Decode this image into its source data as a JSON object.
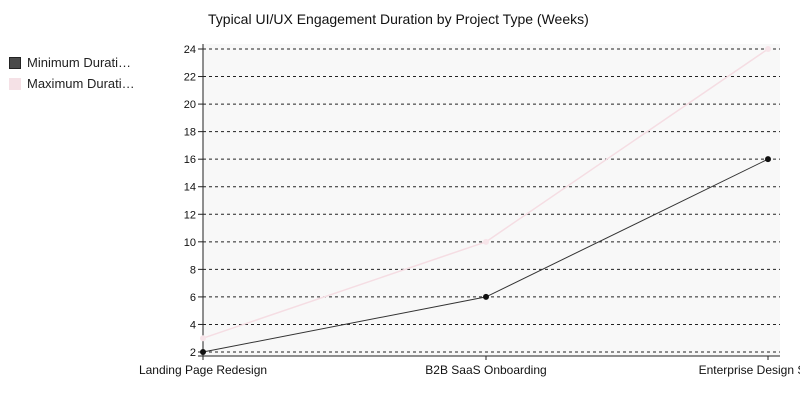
{
  "chart_data": {
    "type": "line",
    "title": "Typical UI/UX Engagement Duration by Project Type (Weeks)",
    "xlabel": "",
    "ylabel": "",
    "categories": [
      "Landing Page Redesign",
      "B2B SaaS Onboarding",
      "Enterprise Design System"
    ],
    "series": [
      {
        "name": "Minimum Duration",
        "legend_label": "Minimum Durati…",
        "color": "#4a4a4a",
        "line_color": "#333333",
        "point_color": "#111111",
        "values": [
          2,
          6,
          16
        ]
      },
      {
        "name": "Maximum Duration",
        "legend_label": "Maximum Durati…",
        "color": "#f5e1e6",
        "line_color": "#f5dde3",
        "point_color": "#f7e4e9",
        "values": [
          3,
          10,
          24
        ]
      }
    ],
    "ylim": [
      2,
      24
    ],
    "yticks": [
      2,
      4,
      6,
      8,
      10,
      12,
      14,
      16,
      18,
      20,
      22,
      24
    ],
    "grid": true,
    "grid_style": "dashed",
    "legend_position": "top-left"
  }
}
